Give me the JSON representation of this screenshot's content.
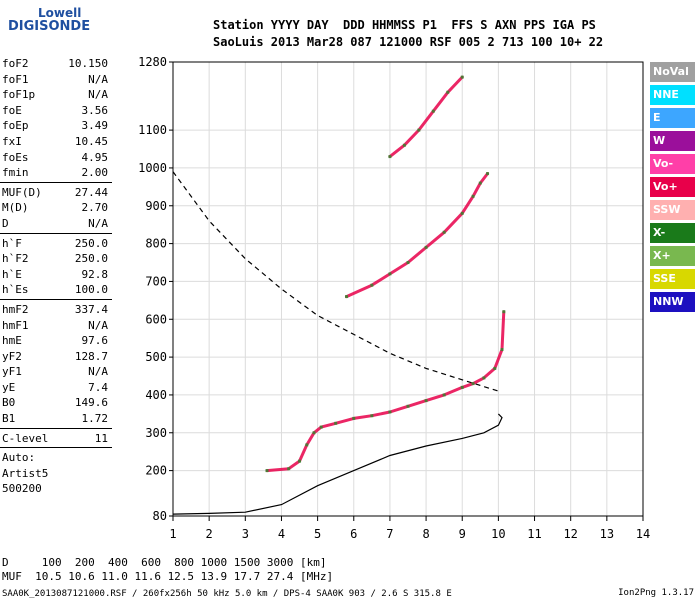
{
  "logo": {
    "line1": "Lowell",
    "line2": "DIGISONDE"
  },
  "header": {
    "row1": "Station YYYY DAY  DDD HHMMSS P1  FFS S AXN PPS IGA PS",
    "row2": "SaoLuis 2013 Mar28 087 121000 RSF 005 2 713 100 10+ 22"
  },
  "params": [
    [
      {
        "k": "foF2",
        "v": "10.150"
      },
      {
        "k": "foF1",
        "v": "N/A"
      },
      {
        "k": "foF1p",
        "v": "N/A"
      },
      {
        "k": "foE",
        "v": "3.56"
      },
      {
        "k": "foEp",
        "v": "3.49"
      },
      {
        "k": "fxI",
        "v": "10.45"
      },
      {
        "k": "foEs",
        "v": "4.95"
      },
      {
        "k": "fmin",
        "v": "2.00"
      }
    ],
    [
      {
        "k": "MUF(D)",
        "v": "27.44"
      },
      {
        "k": "M(D)",
        "v": "2.70"
      },
      {
        "k": "D",
        "v": "N/A"
      }
    ],
    [
      {
        "k": "h`F",
        "v": "250.0"
      },
      {
        "k": "h`F2",
        "v": "250.0"
      },
      {
        "k": "h`E",
        "v": "92.8"
      },
      {
        "k": "h`Es",
        "v": "100.0"
      }
    ],
    [
      {
        "k": "hmF2",
        "v": "337.4"
      },
      {
        "k": "hmF1",
        "v": "N/A"
      },
      {
        "k": "hmE",
        "v": "97.6"
      },
      {
        "k": "yF2",
        "v": "128.7"
      },
      {
        "k": "yF1",
        "v": "N/A"
      },
      {
        "k": "yE",
        "v": "7.4"
      },
      {
        "k": "B0",
        "v": "149.6"
      },
      {
        "k": "B1",
        "v": "1.72"
      }
    ],
    [
      {
        "k": "C-level",
        "v": "11"
      }
    ],
    [
      {
        "k": "Auto:",
        "v": ""
      },
      {
        "k": "Artist5",
        "v": ""
      },
      {
        "k": "500200",
        "v": ""
      }
    ]
  ],
  "legend": [
    {
      "label": "NoVal",
      "color": "#a0a0a0"
    },
    {
      "label": "NNE",
      "color": "#00e0ff"
    },
    {
      "label": "E",
      "color": "#3da6ff"
    },
    {
      "label": "W",
      "color": "#9b0f9b"
    },
    {
      "label": "Vo-",
      "color": "#ff3fa8"
    },
    {
      "label": "Vo+",
      "color": "#e8004a"
    },
    {
      "label": "SSW",
      "color": "#ffb0b0"
    },
    {
      "label": "X-",
      "color": "#1a7a1a"
    },
    {
      "label": "X+",
      "color": "#79b84f"
    },
    {
      "label": "SSE",
      "color": "#d8d800"
    },
    {
      "label": "NNW",
      "color": "#1d10c0"
    }
  ],
  "footer": {
    "row1": "D     100  200  400  600  800 1000 1500 3000 [km]",
    "row2": "MUF  10.5 10.6 11.0 11.6 12.5 13.9 17.7 27.4 [MHz]",
    "row3": "SAA0K_2013087121000.RSF / 260fx256h 50 kHz 5.0 km / DPS-4 SAA0K 903 / 2.6 S 315.8 E",
    "credit": "Ion2Png 1.3.17"
  },
  "chart_data": {
    "type": "scatter",
    "x_ticks": [
      "1",
      "2",
      "3",
      "4",
      "5",
      "6",
      "7",
      "8",
      "9",
      "10",
      "11",
      "12",
      "13",
      "14"
    ],
    "y_ticks": [
      "80",
      "200",
      "300",
      "400",
      "500",
      "600",
      "700",
      "800",
      "900",
      "1000",
      "1100",
      "1280"
    ],
    "xlim": [
      1,
      14
    ],
    "ylim": [
      80,
      1280
    ],
    "xlabel": "",
    "ylabel": "",
    "grid": true,
    "series": [
      {
        "color": "#e8004a",
        "x": [
          3.6,
          4.2,
          4.5,
          4.7,
          4.9,
          5.1,
          5.5,
          6,
          6.5,
          7,
          7.5,
          8,
          8.5,
          9,
          9.3,
          9.6,
          9.9,
          10.1,
          10.15
        ],
        "y": [
          200,
          205,
          225,
          268,
          300,
          315,
          325,
          338,
          345,
          355,
          370,
          385,
          400,
          420,
          430,
          445,
          470,
          520,
          620
        ]
      },
      {
        "color": "#e8004a",
        "x": [
          5.8,
          6.5,
          7,
          7.5,
          8,
          8.5,
          9,
          9.3,
          9.5,
          9.7
        ],
        "y": [
          660,
          690,
          720,
          750,
          790,
          830,
          880,
          925,
          960,
          985
        ]
      },
      {
        "color": "#e8004a",
        "x": [
          7,
          7.4,
          7.8,
          8.2,
          8.6,
          9
        ],
        "y": [
          1030,
          1060,
          1100,
          1150,
          1200,
          1240
        ]
      }
    ],
    "model_curves": [
      {
        "style": "dashed",
        "x": [
          1,
          2,
          3,
          4,
          5,
          6,
          7,
          8,
          9,
          10
        ],
        "y": [
          990,
          860,
          760,
          680,
          610,
          560,
          510,
          470,
          440,
          410
        ]
      },
      {
        "style": "solid",
        "x": [
          1,
          2,
          3,
          4,
          5,
          6,
          7,
          8,
          9,
          9.6,
          10,
          10.1,
          10
        ],
        "y": [
          85,
          87,
          90,
          110,
          160,
          200,
          240,
          265,
          285,
          300,
          320,
          340,
          350
        ]
      }
    ]
  }
}
